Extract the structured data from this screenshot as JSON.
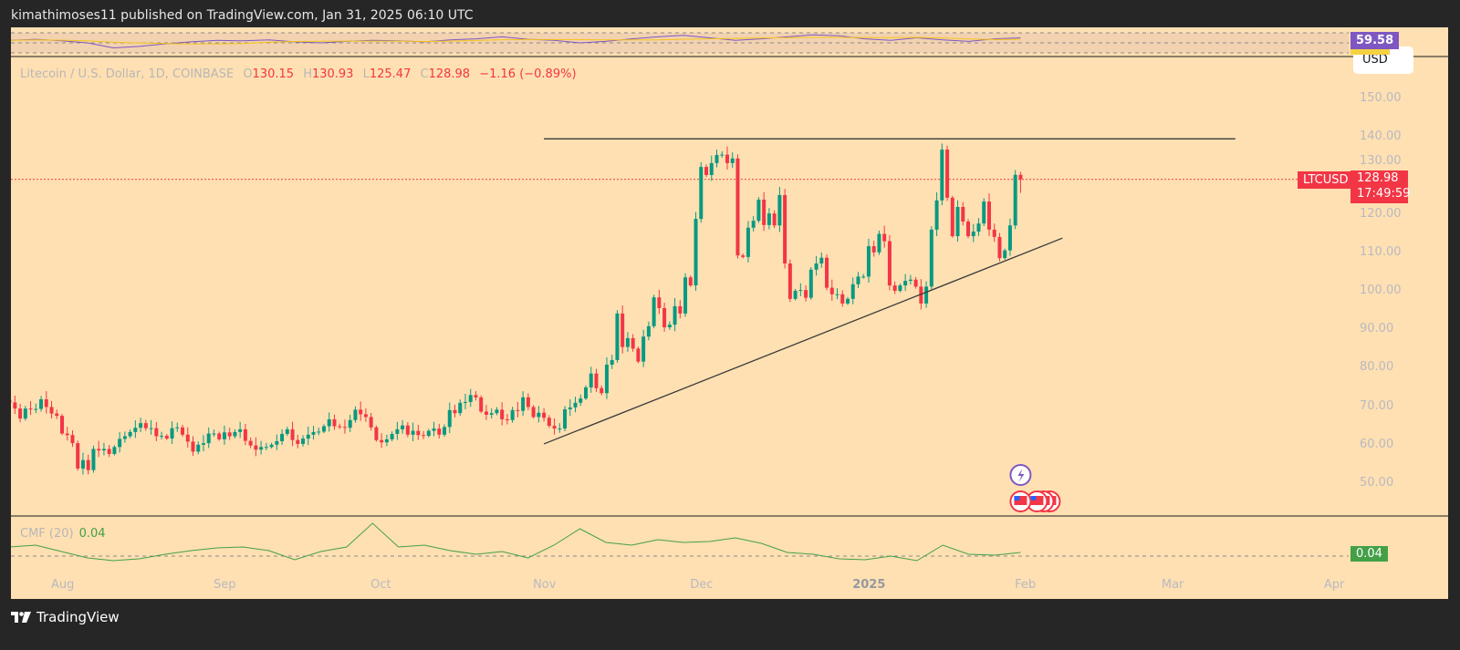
{
  "header": {
    "published_by": "kimathimoses11 published on TradingView.com, Jan 31, 2025 06:10 UTC"
  },
  "legend": {
    "symbol": "Litecoin / U.S. Dollar, 1D, COINBASE",
    "o_label": "O",
    "o": "130.15",
    "h_label": "H",
    "h": "130.93",
    "l_label": "L",
    "l": "125.47",
    "c_label": "C",
    "c": "128.98",
    "change": "−1.16 (−0.89%)"
  },
  "currency_button": "USD",
  "price_tag": {
    "symbol": "LTCUSD",
    "price": "128.98",
    "countdown": "17:49:59"
  },
  "rsi": {
    "value_label": "59.58",
    "values": [
      55,
      57,
      54,
      50,
      40,
      43,
      48,
      52,
      55,
      54,
      56,
      52,
      50,
      53,
      55,
      54,
      52,
      56,
      58,
      62,
      57,
      55,
      50,
      53,
      58,
      62,
      65,
      60,
      55,
      58,
      62,
      66,
      64,
      58,
      55,
      60,
      56,
      53,
      58,
      60
    ]
  },
  "cmf": {
    "title": "CMF (20)",
    "value": "0.04",
    "values": [
      0.1,
      0.12,
      0.05,
      -0.02,
      -0.05,
      -0.03,
      0.02,
      0.06,
      0.09,
      0.1,
      0.06,
      -0.04,
      0.05,
      0.1,
      0.36,
      0.1,
      0.12,
      0.06,
      0.02,
      0.05,
      -0.02,
      0.12,
      0.3,
      0.15,
      0.12,
      0.18,
      0.15,
      0.16,
      0.2,
      0.14,
      0.04,
      0.02,
      -0.03,
      -0.04,
      0.0,
      -0.05,
      0.12,
      0.02,
      0.01,
      0.04
    ]
  },
  "colors": {
    "up": "#089981",
    "down": "#f23645",
    "background": "#ffe0b2",
    "rsi": "#7e57c2",
    "rsi_ma": "#f5c518",
    "cmf": "#43a047"
  },
  "footer": {
    "brand": "TradingView"
  },
  "chart_data": {
    "type": "candlestick",
    "title": "Litecoin / U.S. Dollar, 1D, COINBASE",
    "start_date": "2024-07-22",
    "end_date": "2025-01-31",
    "closes": [
      71.0,
      69.4,
      66.8,
      69.4,
      69.3,
      69.3,
      71.8,
      69.8,
      68.1,
      67.5,
      62.9,
      62.5,
      60.4,
      53.8,
      56.0,
      53.4,
      58.9,
      58.5,
      58.9,
      57.6,
      59.4,
      61.5,
      62.2,
      63.3,
      64.4,
      65.6,
      64.3,
      64.3,
      62.2,
      62.3,
      61.6,
      64.3,
      64.5,
      62.6,
      60.8,
      58.2,
      60.0,
      60.4,
      62.9,
      62.9,
      61.4,
      63.2,
      62.2,
      63.3,
      64.0,
      61.0,
      59.8,
      58.7,
      59.4,
      59.4,
      60.0,
      60.9,
      62.8,
      64.0,
      61.2,
      60.2,
      61.6,
      62.6,
      63.3,
      63.4,
      64.8,
      66.6,
      64.8,
      64.6,
      64.4,
      66.4,
      69.1,
      67.9,
      67.2,
      64.5,
      61.2,
      60.6,
      61.4,
      62.8,
      64.0,
      65.0,
      62.6,
      63.6,
      62.5,
      62.3,
      63.6,
      64.2,
      62.6,
      64.6,
      69.0,
      68.2,
      70.9,
      71.1,
      72.9,
      72.3,
      68.6,
      67.8,
      68.2,
      69.1,
      66.6,
      66.4,
      69.0,
      68.8,
      72.3,
      69.8,
      67.2,
      68.3,
      67.0,
      64.9,
      64.2,
      64.2,
      69.2,
      69.7,
      70.9,
      72.0,
      74.9,
      78.5,
      74.7,
      73.4,
      80.8,
      82.0,
      94.1,
      85.4,
      87.7,
      85.0,
      81.6,
      88.1,
      90.8,
      98.3,
      95.5,
      90.5,
      91.2,
      96.0,
      94.1,
      103.5,
      101.4,
      118.7,
      132.2,
      130.1,
      133.2,
      135.3,
      135.4,
      133.2,
      134.4,
      109.2,
      108.8,
      116.4,
      118.2,
      123.7,
      117.1,
      120.1,
      117.0,
      124.9,
      107.1,
      97.9,
      100.0,
      100.2,
      98.2,
      105.5,
      107.1,
      108.6,
      100.8,
      99.1,
      99.1,
      96.7,
      97.9,
      101.7,
      103.7,
      103.7,
      111.6,
      110.0,
      114.8,
      112.9,
      101.4,
      100.0,
      101.4,
      102.6,
      102.9,
      101.1,
      96.7,
      101.1,
      115.9,
      123.5,
      136.7,
      124.2,
      114.2,
      121.8,
      118.0,
      114.2,
      115.4,
      117.5,
      123.2,
      115.9,
      114.0,
      108.5,
      110.5,
      117.0,
      130.15,
      128.98
    ],
    "last_candle": {
      "open": 130.15,
      "high": 130.93,
      "low": 125.47,
      "close": 128.98
    },
    "y_ticks": [
      "150.00",
      "140.00",
      "130.00",
      "120.00",
      "110.00",
      "100.00",
      "90.00",
      "80.00",
      "70.00",
      "60.00",
      "50.00"
    ],
    "x_ticks": [
      "Aug",
      "Sep",
      "Oct",
      "Nov",
      "Dec",
      "2025",
      "Feb",
      "Mar",
      "Apr"
    ],
    "ylim": [
      50,
      150
    ],
    "trendlines": [
      {
        "name": "resistance",
        "from": [
          "2024-11-01",
          139.5
        ],
        "to": [
          "2025-03-13",
          139.5
        ]
      },
      {
        "name": "support",
        "from": [
          "2024-11-01",
          60.2
        ],
        "to": [
          "2025-02-08",
          113.7
        ]
      }
    ],
    "current_price_line": 128.98
  }
}
